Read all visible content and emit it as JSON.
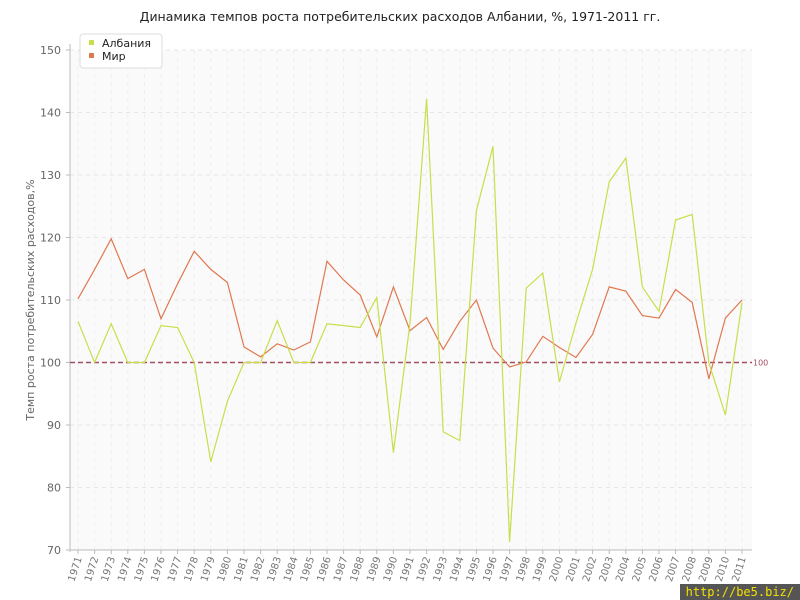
{
  "watermark": "http://be5.biz/",
  "chart_data": {
    "type": "line",
    "title": "Динамика темпов роста потребительских расходов Албании, %, 1971-2011 гг.",
    "ylabel": "Темп роста потребительских расходов,%",
    "xlabel": "",
    "ylim": [
      70,
      150
    ],
    "yticks": [
      70,
      80,
      90,
      100,
      110,
      120,
      130,
      140,
      150
    ],
    "grid": true,
    "legend": "top-left",
    "reference_line": {
      "value": 100,
      "label": "100",
      "color": "#a05060"
    },
    "x": [
      "1971",
      "1972",
      "1973",
      "1974",
      "1975",
      "1976",
      "1977",
      "1978",
      "1979",
      "1980",
      "1981",
      "1982",
      "1983",
      "1984",
      "1985",
      "1986",
      "1987",
      "1988",
      "1989",
      "1990",
      "1991",
      "1992",
      "1993",
      "1994",
      "1995",
      "1996",
      "1997",
      "1998",
      "1999",
      "2000",
      "2001",
      "2002",
      "2003",
      "2004",
      "2005",
      "2006",
      "2007",
      "2008",
      "2009",
      "2010",
      "2011"
    ],
    "series": [
      {
        "name": "Албания",
        "color": "#c8de4a",
        "values": [
          106.6,
          100.0,
          106.2,
          100.0,
          100.0,
          105.9,
          105.6,
          100.0,
          84.1,
          93.8,
          100.0,
          100.0,
          106.7,
          100.0,
          100.0,
          106.2,
          105.9,
          105.6,
          110.4,
          85.6,
          106.3,
          142.2,
          88.9,
          87.5,
          124.3,
          134.6,
          71.3,
          111.9,
          114.3,
          96.9,
          106.3,
          114.9,
          128.9,
          132.7,
          112.1,
          108.2,
          122.8,
          123.7,
          100.0,
          91.6,
          109.6
        ]
      },
      {
        "name": "Мир",
        "color": "#e07850",
        "values": [
          110.2,
          114.9,
          119.8,
          113.4,
          114.9,
          107.0,
          112.6,
          117.8,
          114.9,
          112.8,
          102.5,
          100.9,
          103.0,
          102.0,
          103.3,
          116.2,
          113.2,
          110.8,
          104.1,
          112.1,
          105.1,
          107.2,
          102.1,
          106.6,
          110.0,
          102.3,
          99.3,
          100.1,
          104.2,
          102.4,
          100.8,
          104.5,
          112.1,
          111.4,
          107.5,
          107.1,
          111.7,
          109.6,
          97.4,
          107.1,
          110.0
        ]
      }
    ]
  }
}
